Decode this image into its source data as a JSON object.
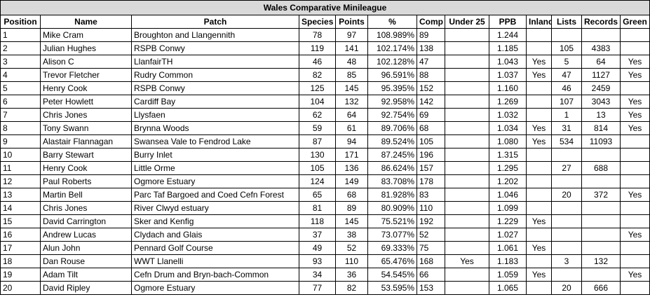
{
  "table": {
    "title": "Wales Comparative Minileague",
    "headers": [
      "Position",
      "Name",
      "Patch",
      "Species",
      "Points",
      "%",
      "Comp",
      "Under 25",
      "PPB",
      "Inland",
      "Lists",
      "Records",
      "Green"
    ],
    "rows": [
      [
        "1",
        "Mike Cram",
        "Broughton and Llangennith",
        "78",
        "97",
        "108.989%",
        "89",
        null,
        "1.244",
        null,
        null,
        null,
        null
      ],
      [
        "2",
        "Julian Hughes",
        "RSPB Conwy",
        "119",
        "141",
        "102.174%",
        "138",
        null,
        "1.185",
        null,
        "105",
        "4383",
        null
      ],
      [
        "3",
        "Alison C",
        "LlanfairTH",
        "46",
        "48",
        "102.128%",
        "47",
        null,
        "1.043",
        "Yes",
        "5",
        "64",
        "Yes"
      ],
      [
        "4",
        "Trevor Fletcher",
        "Rudry Common",
        "82",
        "85",
        "96.591%",
        "88",
        null,
        "1.037",
        "Yes",
        "47",
        "1127",
        "Yes"
      ],
      [
        "5",
        "Henry Cook",
        "RSPB Conwy",
        "125",
        "145",
        "95.395%",
        "152",
        null,
        "1.160",
        null,
        "46",
        "2459",
        null
      ],
      [
        "6",
        "Peter Howlett",
        "Cardiff Bay",
        "104",
        "132",
        "92.958%",
        "142",
        null,
        "1.269",
        null,
        "107",
        "3043",
        "Yes"
      ],
      [
        "7",
        "Chris Jones",
        "Llysfaen",
        "62",
        "64",
        "92.754%",
        "69",
        null,
        "1.032",
        null,
        "1",
        "13",
        "Yes"
      ],
      [
        "8",
        "Tony Swann",
        "Brynna Woods",
        "59",
        "61",
        "89.706%",
        "68",
        null,
        "1.034",
        "Yes",
        "31",
        "814",
        "Yes"
      ],
      [
        "9",
        "Alastair Flannagan",
        "Swansea Vale to Fendrod Lake",
        "87",
        "94",
        "89.524%",
        "105",
        null,
        "1.080",
        "Yes",
        "534",
        "11093",
        null
      ],
      [
        "10",
        "Barry Stewart",
        "Burry Inlet",
        "130",
        "171",
        "87.245%",
        "196",
        null,
        "1.315",
        null,
        null,
        null,
        null
      ],
      [
        "11",
        "Henry Cook",
        "Little Orme",
        "105",
        "136",
        "86.624%",
        "157",
        null,
        "1.295",
        null,
        "27",
        "688",
        null
      ],
      [
        "12",
        "Paul Roberts",
        "Ogmore Estuary",
        "124",
        "149",
        "83.708%",
        "178",
        null,
        "1.202",
        null,
        null,
        null,
        null
      ],
      [
        "13",
        "Martin Bell",
        "Parc Taf Bargoed and Coed Cefn Forest",
        "65",
        "68",
        "81.928%",
        "83",
        null,
        "1.046",
        null,
        "20",
        "372",
        "Yes"
      ],
      [
        "14",
        "Chris Jones",
        "River Clwyd estuary",
        "81",
        "89",
        "80.909%",
        "110",
        null,
        "1.099",
        null,
        null,
        null,
        null
      ],
      [
        "15",
        "David Carrington",
        "Sker and Kenfig",
        "118",
        "145",
        "75.521%",
        "192",
        null,
        "1.229",
        "Yes",
        null,
        null,
        null
      ],
      [
        "16",
        "Andrew Lucas",
        "Clydach and Glais",
        "37",
        "38",
        "73.077%",
        "52",
        null,
        "1.027",
        null,
        null,
        null,
        "Yes"
      ],
      [
        "17",
        "Alun John",
        "Pennard Golf Course",
        "49",
        "52",
        "69.333%",
        "75",
        null,
        "1.061",
        "Yes",
        null,
        null,
        null
      ],
      [
        "18",
        "Dan Rouse",
        "WWT Llanelli",
        "93",
        "110",
        "65.476%",
        "168",
        "Yes",
        "1.183",
        null,
        "3",
        "132",
        null
      ],
      [
        "19",
        "Adam Tilt",
        "Cefn Drum and Bryn-bach-Common",
        "34",
        "36",
        "54.545%",
        "66",
        null,
        "1.059",
        "Yes",
        null,
        null,
        "Yes"
      ],
      [
        "20",
        "David Ripley",
        "Ogmore Estuary",
        "77",
        "82",
        "53.595%",
        "153",
        null,
        "1.065",
        null,
        "20",
        "666",
        null
      ]
    ]
  }
}
